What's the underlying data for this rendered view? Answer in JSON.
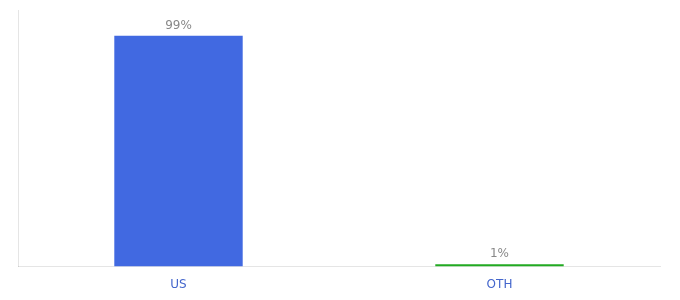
{
  "chart_data": {
    "type": "bar",
    "categories": [
      "US",
      "OTH"
    ],
    "values": [
      99,
      1
    ],
    "colors": [
      "#4169e1",
      "#22aa22"
    ],
    "ylim": [
      0,
      110
    ],
    "grid": false,
    "tick_labels": "x",
    "data_labels": true,
    "value_labels": [
      "99%",
      "1%"
    ]
  }
}
